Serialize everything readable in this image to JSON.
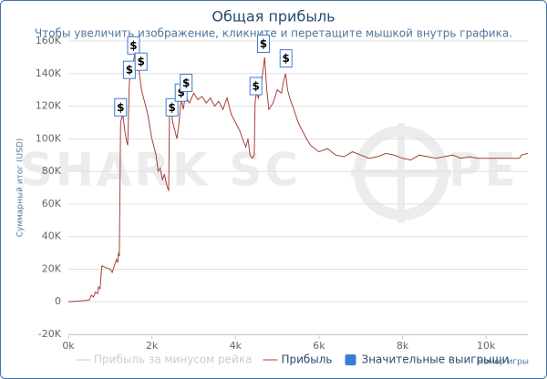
{
  "chart_data": {
    "type": "line",
    "title": "Общая прибыль",
    "subtitle": "Чтобы увеличить изображение, кликните и перетащите мышкой внутрь графика.",
    "y_label": "Суммарный итог (USD)",
    "x_label": "Номер игры",
    "watermark": [
      "SHARK SC",
      "PE"
    ],
    "xlim": [
      0,
      11000
    ],
    "xticks": [
      {
        "value": 0,
        "label": "0k"
      },
      {
        "value": 2000,
        "label": "2k"
      },
      {
        "value": 4000,
        "label": "4k"
      },
      {
        "value": 6000,
        "label": "6k"
      },
      {
        "value": 8000,
        "label": "8k"
      },
      {
        "value": 10000,
        "label": "10k"
      }
    ],
    "ylim": [
      -20000,
      160000
    ],
    "yticks": [
      {
        "value": -20000,
        "label": "-20K"
      },
      0,
      {
        "value": 20000,
        "label": "20K"
      },
      {
        "value": 40000,
        "label": "40K"
      },
      {
        "value": 60000,
        "label": "60K"
      },
      {
        "value": 80000,
        "label": "80K"
      },
      {
        "value": 100000,
        "label": "100K"
      },
      {
        "value": 120000,
        "label": "120K"
      },
      {
        "value": 140000,
        "label": "140K"
      },
      {
        "value": 160000,
        "label": "160K"
      }
    ],
    "grid": true,
    "legend": "bottom",
    "series": [
      {
        "name": "Прибыль за минусом рейка",
        "color": "#cccccc",
        "visible": false
      },
      {
        "name": "Прибыль",
        "color": "#a8403a",
        "x": [
          0,
          300,
          500,
          550,
          600,
          650,
          700,
          720,
          760,
          800,
          900,
          1000,
          1050,
          1100,
          1150,
          1180,
          1200,
          1220,
          1250,
          1300,
          1350,
          1400,
          1420,
          1460,
          1500,
          1550,
          1600,
          1650,
          1700,
          1750,
          1800,
          1900,
          2000,
          2100,
          2150,
          2200,
          2250,
          2300,
          2350,
          2400,
          2420,
          2450,
          2500,
          2550,
          2600,
          2650,
          2700,
          2750,
          2800,
          2900,
          3000,
          3100,
          3200,
          3300,
          3400,
          3500,
          3600,
          3700,
          3800,
          3900,
          4000,
          4100,
          4200,
          4250,
          4300,
          4350,
          4400,
          4450,
          4470,
          4500,
          4550,
          4600,
          4650,
          4700,
          4750,
          4800,
          4900,
          5000,
          5100,
          5150,
          5200,
          5250,
          5300,
          5400,
          5500,
          5600,
          5700,
          5800,
          5900,
          6000,
          6200,
          6400,
          6600,
          6800,
          7000,
          7200,
          7400,
          7600,
          7800,
          8000,
          8200,
          8400,
          8600,
          8800,
          9000,
          9200,
          9400,
          9600,
          9800,
          10000,
          10400,
          10600,
          10800,
          10850,
          11000
        ],
        "values": [
          0,
          500,
          1000,
          4000,
          3000,
          6000,
          5000,
          9000,
          8000,
          22000,
          21000,
          20000,
          18000,
          22000,
          26000,
          24000,
          30000,
          28000,
          110000,
          115000,
          105000,
          98000,
          96000,
          135000,
          140000,
          145000,
          155000,
          148000,
          140000,
          130000,
          125000,
          115000,
          100000,
          90000,
          80000,
          82000,
          75000,
          78000,
          72000,
          68000,
          115000,
          120000,
          110000,
          105000,
          100000,
          110000,
          125000,
          118000,
          126000,
          122000,
          128000,
          124000,
          126000,
          122000,
          125000,
          120000,
          123000,
          118000,
          125000,
          115000,
          110000,
          105000,
          98000,
          95000,
          100000,
          90000,
          88000,
          90000,
          122000,
          128000,
          125000,
          132000,
          140000,
          150000,
          130000,
          118000,
          122000,
          130000,
          128000,
          135000,
          140000,
          130000,
          125000,
          118000,
          110000,
          105000,
          100000,
          96000,
          94000,
          92000,
          94000,
          90000,
          89000,
          92000,
          90000,
          88000,
          89000,
          91000,
          90000,
          88000,
          87000,
          90000,
          89000,
          88000,
          89000,
          90000,
          88000,
          89000,
          88000,
          88000,
          88000,
          88000,
          88000,
          90000,
          91000
        ]
      },
      {
        "name": "Значительные выигрыши",
        "color": "#3a7bd5",
        "type": "flags",
        "marker_label": "$",
        "x": [
          1250,
          1560,
          1460,
          1740,
          2480,
          2700,
          2820,
          4490,
          4670,
          5210
        ],
        "values": [
          114000,
          152000,
          137000,
          142000,
          114000,
          123000,
          129000,
          127000,
          153000,
          144000
        ]
      }
    ]
  }
}
